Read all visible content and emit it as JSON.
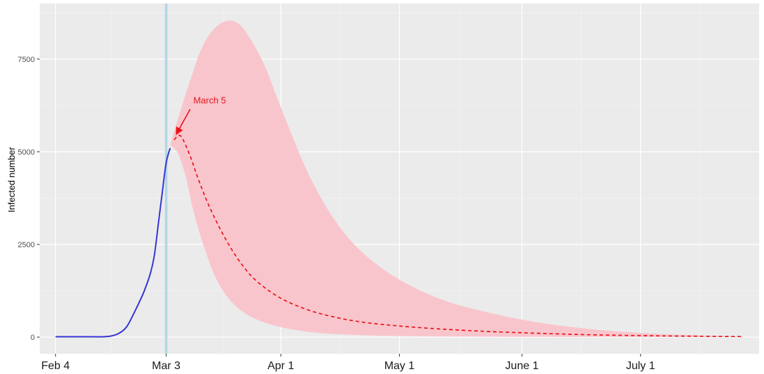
{
  "chart_data": {
    "type": "line",
    "title": "",
    "xlabel": "",
    "ylabel": "Infected number",
    "x_tick_labels": [
      "Feb 4",
      "Mar 3",
      "Apr 1",
      "May 1",
      "June 1",
      "July 1"
    ],
    "x_tick_dates": [
      "2020-02-04",
      "2020-03-03",
      "2020-04-01",
      "2020-05-01",
      "2020-06-01",
      "2020-07-01"
    ],
    "y_ticks": [
      0,
      2500,
      5000,
      7500
    ],
    "y_tick_labels": [
      "0",
      "2500",
      "5000",
      "7500"
    ],
    "xlim": [
      "2020-01-31",
      "2020-07-31"
    ],
    "ylim": [
      -450,
      9000
    ],
    "grid": true,
    "background": "#ebebeb",
    "series": [
      {
        "style": "solid",
        "color": "#3535d6",
        "points": [
          [
            "2020-02-04",
            10
          ],
          [
            "2020-02-08",
            10
          ],
          [
            "2020-02-12",
            10
          ],
          [
            "2020-02-16",
            10
          ],
          [
            "2020-02-18",
            30
          ],
          [
            "2020-02-20",
            100
          ],
          [
            "2020-02-22",
            280
          ],
          [
            "2020-02-24",
            680
          ],
          [
            "2020-02-26",
            1130
          ],
          [
            "2020-02-27",
            1400
          ],
          [
            "2020-02-28",
            1720
          ],
          [
            "2020-02-29",
            2200
          ],
          [
            "2020-03-01",
            3050
          ],
          [
            "2020-03-02",
            3900
          ],
          [
            "2020-03-03",
            4700
          ],
          [
            "2020-03-04",
            5100
          ]
        ]
      },
      {
        "style": "dashed",
        "color": "#e8141a",
        "points": [
          [
            "2020-03-05",
            5320
          ],
          [
            "2020-03-06",
            5430
          ],
          [
            "2020-03-07",
            5380
          ],
          [
            "2020-03-09",
            4900
          ],
          [
            "2020-03-11",
            4300
          ],
          [
            "2020-03-14",
            3500
          ],
          [
            "2020-03-18",
            2650
          ],
          [
            "2020-03-22",
            1980
          ],
          [
            "2020-03-26",
            1500
          ],
          [
            "2020-04-01",
            1050
          ],
          [
            "2020-04-08",
            730
          ],
          [
            "2020-04-15",
            530
          ],
          [
            "2020-04-22",
            400
          ],
          [
            "2020-05-01",
            300
          ],
          [
            "2020-05-12",
            215
          ],
          [
            "2020-05-24",
            150
          ],
          [
            "2020-06-06",
            100
          ],
          [
            "2020-06-20",
            60
          ],
          [
            "2020-07-05",
            35
          ],
          [
            "2020-07-20",
            20
          ],
          [
            "2020-07-27",
            15
          ]
        ]
      }
    ],
    "band": {
      "color": "#f9c5cc",
      "upper": [
        [
          "2020-03-04",
          5180
        ],
        [
          "2020-03-06",
          5900
        ],
        [
          "2020-03-09",
          6900
        ],
        [
          "2020-03-12",
          7800
        ],
        [
          "2020-03-15",
          8300
        ],
        [
          "2020-03-18",
          8520
        ],
        [
          "2020-03-21",
          8480
        ],
        [
          "2020-03-24",
          8100
        ],
        [
          "2020-03-28",
          7300
        ],
        [
          "2020-04-01",
          6200
        ],
        [
          "2020-04-08",
          4400
        ],
        [
          "2020-04-15",
          3100
        ],
        [
          "2020-04-22",
          2250
        ],
        [
          "2020-05-01",
          1550
        ],
        [
          "2020-05-12",
          1000
        ],
        [
          "2020-05-24",
          650
        ],
        [
          "2020-06-06",
          380
        ],
        [
          "2020-06-20",
          200
        ],
        [
          "2020-07-05",
          90
        ],
        [
          "2020-07-20",
          35
        ],
        [
          "2020-07-27",
          15
        ]
      ],
      "lower": [
        [
          "2020-03-04",
          5180
        ],
        [
          "2020-03-06",
          4950
        ],
        [
          "2020-03-08",
          4300
        ],
        [
          "2020-03-10",
          3350
        ],
        [
          "2020-03-13",
          2300
        ],
        [
          "2020-03-16",
          1500
        ],
        [
          "2020-03-20",
          900
        ],
        [
          "2020-03-25",
          520
        ],
        [
          "2020-04-01",
          270
        ],
        [
          "2020-04-10",
          120
        ],
        [
          "2020-04-20",
          60
        ],
        [
          "2020-05-01",
          30
        ],
        [
          "2020-05-15",
          15
        ],
        [
          "2020-06-01",
          8
        ],
        [
          "2020-07-01",
          4
        ],
        [
          "2020-07-27",
          2
        ]
      ]
    },
    "vline": {
      "date": "2020-03-03",
      "color": "#add8e6"
    },
    "annotation": {
      "text": "March 5",
      "color": "#e8141a",
      "point": [
        "2020-03-05",
        5430
      ],
      "text_at": [
        "2020-03-14",
        6300
      ]
    }
  }
}
